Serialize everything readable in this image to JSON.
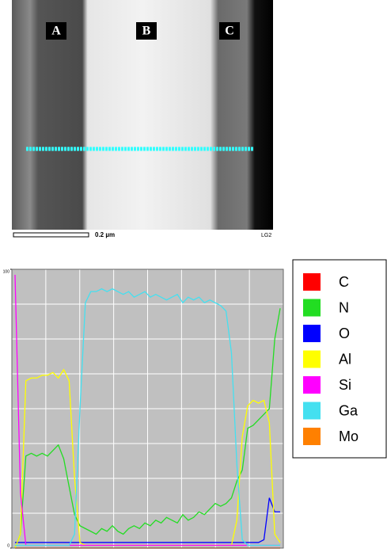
{
  "figure": {
    "labels": [
      "A",
      "B",
      "C"
    ],
    "scale_bar": "0.2 µm",
    "code": "LG2"
  },
  "chart_data": {
    "type": "line",
    "categories": [
      null,
      null,
      null,
      null,
      null,
      null,
      null,
      null,
      null,
      null,
      null,
      null,
      null,
      null,
      null,
      null,
      null,
      null,
      null,
      null,
      null,
      null,
      null,
      null,
      null,
      null,
      null,
      null,
      null,
      null,
      null,
      null,
      null,
      null,
      null,
      null,
      null,
      null,
      null,
      null,
      null,
      null,
      null,
      null,
      null,
      null,
      null,
      null,
      null,
      null
    ],
    "ylim": [
      0,
      100
    ],
    "yticks": [
      0,
      100
    ],
    "grid": true,
    "legend": "outside-right",
    "series": [
      {
        "name": "C",
        "color": "#ff0000",
        "values": [
          0,
          0,
          0,
          0,
          0,
          0,
          0,
          0,
          0,
          0,
          0,
          0,
          0,
          0,
          0,
          0,
          0,
          0,
          0,
          0,
          0,
          0,
          0,
          0,
          0,
          0,
          0,
          0,
          0,
          0,
          0,
          0,
          0,
          0,
          0,
          0,
          0,
          0,
          0,
          0,
          0,
          0,
          0,
          0,
          0,
          0,
          0,
          0,
          0,
          0
        ]
      },
      {
        "name": "N",
        "color": "#22dd22",
        "values": [
          0,
          5,
          33,
          34,
          33,
          34,
          33,
          35,
          37,
          32,
          22,
          12,
          8,
          7,
          6,
          5,
          7,
          6,
          8,
          6,
          5,
          7,
          8,
          7,
          9,
          8,
          10,
          9,
          11,
          10,
          9,
          12,
          10,
          11,
          13,
          12,
          14,
          16,
          15,
          16,
          18,
          24,
          28,
          43,
          44,
          46,
          48,
          50,
          75,
          86
        ]
      },
      {
        "name": "O",
        "color": "#0000ff",
        "values": [
          2,
          2,
          2,
          2,
          2,
          2,
          2,
          2,
          2,
          2,
          2,
          2,
          2,
          2,
          2,
          2,
          2,
          2,
          2,
          2,
          2,
          2,
          2,
          2,
          2,
          2,
          2,
          2,
          2,
          2,
          2,
          2,
          2,
          2,
          2,
          2,
          2,
          2,
          2,
          2,
          2,
          2,
          2,
          2,
          2,
          2,
          3,
          18,
          13,
          13
        ]
      },
      {
        "name": "Al",
        "color": "#ffff00",
        "values": [
          0,
          5,
          60,
          61,
          61,
          62,
          62,
          63,
          61,
          64,
          60,
          25,
          2,
          1,
          1,
          1,
          1,
          1,
          1,
          1,
          1,
          1,
          1,
          1,
          1,
          1,
          1,
          1,
          1,
          1,
          1,
          1,
          1,
          1,
          1,
          1,
          1,
          1,
          1,
          1,
          1,
          10,
          40,
          51,
          53,
          52,
          53,
          45,
          5,
          2
        ]
      },
      {
        "name": "Si",
        "color": "#ff00ff",
        "values": [
          98,
          20,
          1,
          1,
          1,
          1,
          1,
          1,
          1,
          1,
          1,
          1,
          1,
          1,
          1,
          1,
          1,
          1,
          1,
          1,
          1,
          1,
          1,
          1,
          1,
          1,
          1,
          1,
          1,
          1,
          1,
          1,
          1,
          1,
          1,
          1,
          1,
          1,
          1,
          1,
          1,
          1,
          1,
          1,
          1,
          1,
          1,
          1,
          1,
          1
        ]
      },
      {
        "name": "Ga",
        "color": "#44e0f0",
        "values": [
          1,
          1,
          1,
          1,
          1,
          1,
          1,
          1,
          1,
          1,
          1,
          5,
          50,
          88,
          92,
          92,
          93,
          92,
          93,
          92,
          91,
          92,
          90,
          91,
          92,
          90,
          91,
          90,
          89,
          90,
          91,
          88,
          90,
          89,
          90,
          88,
          89,
          88,
          87,
          85,
          70,
          30,
          3,
          1,
          1,
          1,
          1,
          1,
          1,
          1
        ]
      },
      {
        "name": "Mo",
        "color": "#ff8000",
        "values": [
          0,
          0,
          0,
          0,
          0,
          0,
          0,
          0,
          0,
          0,
          0,
          0,
          0,
          0,
          0,
          0,
          0,
          0,
          0,
          0,
          0,
          0,
          0,
          0,
          0,
          0,
          0,
          0,
          0,
          0,
          0,
          0,
          0,
          0,
          0,
          0,
          0,
          0,
          0,
          0,
          0,
          0,
          0,
          0,
          0,
          0,
          0,
          0,
          0,
          0
        ]
      }
    ]
  }
}
